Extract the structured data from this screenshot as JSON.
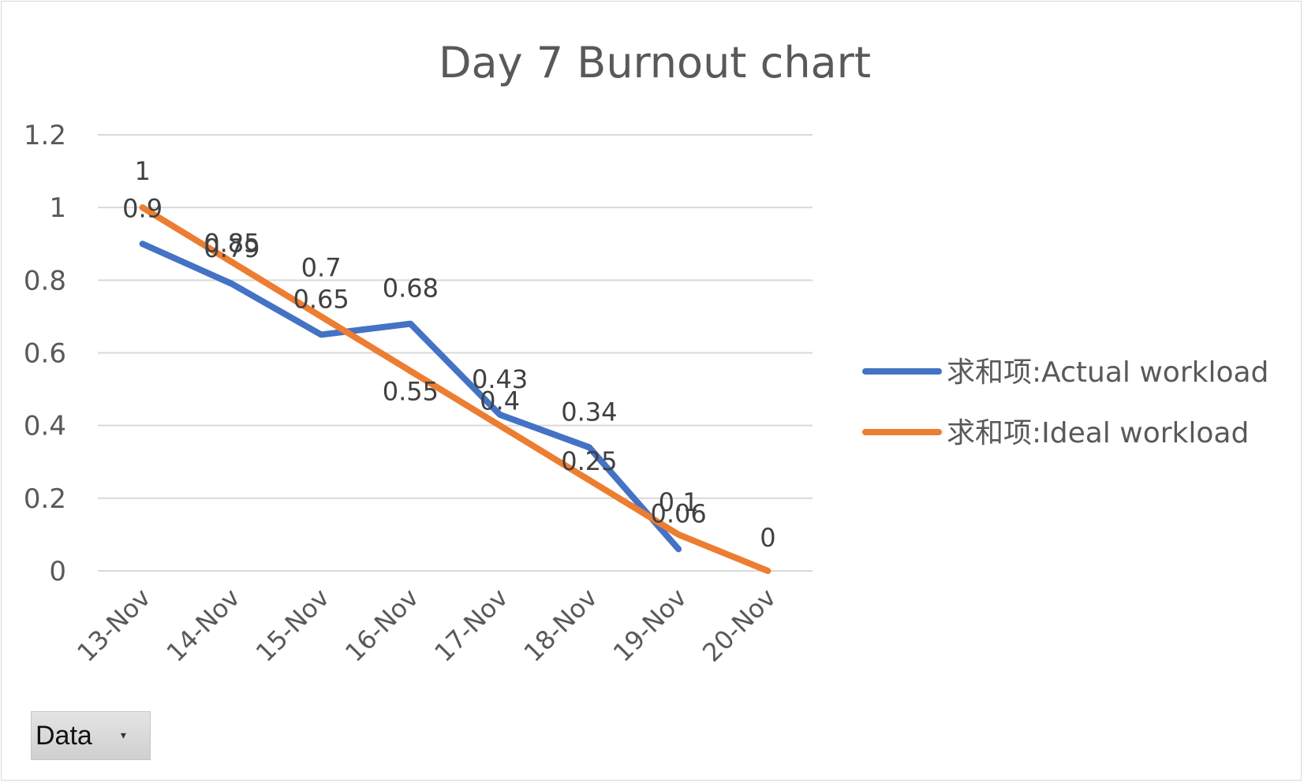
{
  "chart_data": {
    "type": "line",
    "title": "Day 7 Burnout chart",
    "categories": [
      "13-Nov",
      "14-Nov",
      "15-Nov",
      "16-Nov",
      "17-Nov",
      "18-Nov",
      "19-Nov",
      "20-Nov"
    ],
    "series": [
      {
        "name": "求和项:Actual workload",
        "color": "#4472C4",
        "values": [
          0.9,
          0.79,
          0.65,
          0.68,
          0.43,
          0.34,
          0.06,
          null
        ],
        "labels": [
          "0.9",
          "0.79",
          "0.65",
          "0.68",
          "0.43",
          "0.34",
          "0.06",
          ""
        ]
      },
      {
        "name": "求和项:Ideal workload",
        "color": "#ED7D31",
        "values": [
          1,
          0.85,
          0.7,
          0.55,
          0.4,
          0.25,
          0.1,
          0
        ],
        "labels": [
          "1",
          "0.85",
          "0.7",
          "0.55",
          "0.4",
          "0.25",
          "0.1",
          "0"
        ]
      }
    ],
    "ylim": [
      0,
      1.2
    ],
    "yticks": [
      "0",
      "0.2",
      "0.4",
      "0.6",
      "0.8",
      "1",
      "1.2"
    ],
    "yticks_values": [
      0,
      0.2,
      0.4,
      0.6,
      0.8,
      1,
      1.2
    ],
    "grid": true,
    "legend": "right"
  },
  "filter_button": {
    "label": "Data",
    "arrow": "▾"
  }
}
